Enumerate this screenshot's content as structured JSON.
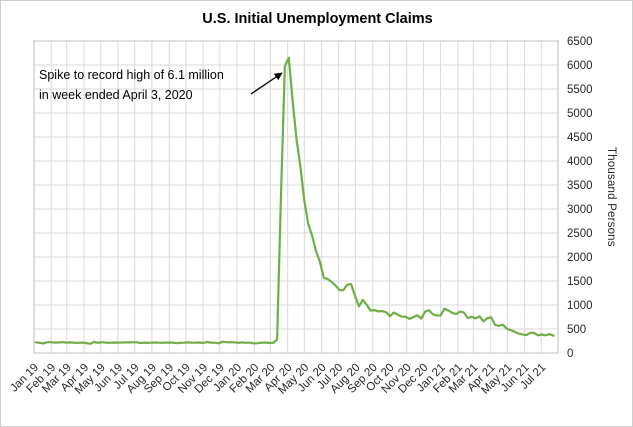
{
  "chart_data": {
    "type": "line",
    "title": "U.S. Initial Unemployment Claims",
    "ylabel": "Thousand Persons",
    "xlabel": "",
    "legend": "none",
    "grid": true,
    "axis_side": "right",
    "line_color": "#70AD47",
    "grid_color": "#D9D9D9",
    "border_color": "#BFBFBF",
    "text_color": "#262626",
    "ylim": [
      0,
      6500
    ],
    "y_tick_step": 500,
    "y_ticks": [
      0,
      500,
      1000,
      1500,
      2000,
      2500,
      3000,
      3500,
      4000,
      4500,
      5000,
      5500,
      6000,
      6500
    ],
    "x_range": [
      "2019-01-01",
      "2021-07-31"
    ],
    "x_tick_labels": [
      "Jan 19",
      "Feb 19",
      "Mar 19",
      "Apr 19",
      "May 19",
      "Jun 19",
      "Jul 19",
      "Aug 19",
      "Sep 19",
      "Oct 19",
      "Nov 19",
      "Dec 19",
      "Jan 20",
      "Feb 20",
      "Mar 20",
      "Apr 20",
      "May 20",
      "Jun 20",
      "Jul 20",
      "Aug 20",
      "Sep 20",
      "Oct 20",
      "Nov 20",
      "Dec 20",
      "Jan 21",
      "Feb 21",
      "Mar 21",
      "Apr 21",
      "May 21",
      "Jun 21",
      "Jul 21"
    ],
    "x_unit": "week_ending_date",
    "start_date": "2019-01-04",
    "end_date": "2021-07-23",
    "frequency_days": 7,
    "values": [
      222,
      212,
      200,
      224,
      225,
      216,
      220,
      226,
      217,
      221,
      212,
      212,
      217,
      204,
      193,
      230,
      212,
      225,
      216,
      213,
      218,
      217,
      219,
      222,
      221,
      224,
      220,
      208,
      216,
      212,
      216,
      219,
      213,
      215,
      217,
      219,
      206,
      210,
      215,
      220,
      216,
      214,
      218,
      211,
      227,
      216,
      214,
      203,
      235,
      222,
      224,
      223,
      212,
      220,
      212,
      217,
      201,
      204,
      215,
      217,
      211,
      211,
      282,
      3307,
      5981,
      6149,
      5237,
      4442,
      3867,
      3176,
      2687,
      2446,
      2123,
      1897,
      1566,
      1540,
      1482,
      1408,
      1310,
      1308,
      1422,
      1435,
      1191,
      971,
      1104,
      1011,
      884,
      893,
      866,
      873,
      849,
      767,
      842,
      797,
      758,
      757,
      711,
      748,
      787,
      716,
      862,
      892,
      806,
      782,
      784,
      926,
      886,
      836,
      812,
      863,
      841,
      730,
      754,
      722,
      765,
      658,
      729,
      742,
      586,
      566,
      590,
      507,
      478,
      444,
      405,
      388,
      374,
      416,
      418,
      368,
      386,
      368,
      394,
      360
    ],
    "peak": {
      "date": "2020-04-03",
      "value": 6149
    },
    "annotation": {
      "line1": "Spike to record high of 6.1 million",
      "line2": "in week ended April 3, 2020"
    }
  }
}
